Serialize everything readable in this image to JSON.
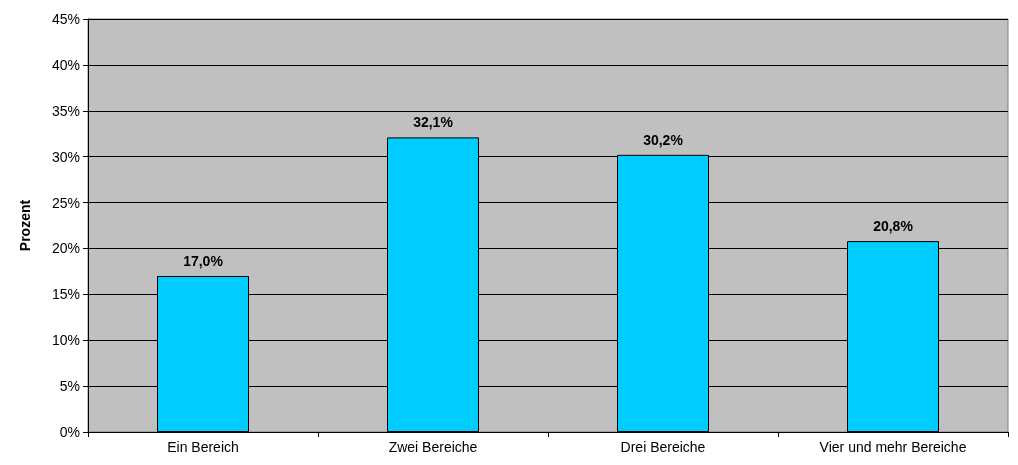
{
  "chart_data": {
    "type": "bar",
    "ylabel": "Prozent",
    "categories": [
      "Ein Bereich",
      "Zwei Bereiche",
      "Drei Bereiche",
      "Vier und mehr Bereiche"
    ],
    "values": [
      17.0,
      32.1,
      30.2,
      20.8
    ],
    "value_labels": [
      "17,0%",
      "32,1%",
      "30,2%",
      "20,8%"
    ],
    "color": "#00ccff",
    "ylim": [
      0,
      45
    ],
    "yticks": [
      {
        "value": 0,
        "label": "0%"
      },
      {
        "value": 5,
        "label": "5%"
      },
      {
        "value": 10,
        "label": "10%"
      },
      {
        "value": 15,
        "label": "15%"
      },
      {
        "value": 20,
        "label": "20%"
      },
      {
        "value": 25,
        "label": "25%"
      },
      {
        "value": 30,
        "label": "30%"
      },
      {
        "value": 35,
        "label": "35%"
      },
      {
        "value": 40,
        "label": "40%"
      },
      {
        "value": 45,
        "label": "45%"
      }
    ],
    "grid": "y"
  }
}
